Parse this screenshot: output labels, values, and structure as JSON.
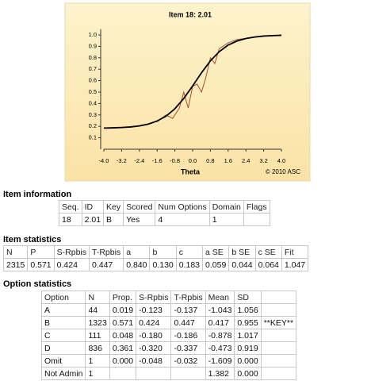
{
  "chart_data": {
    "type": "line",
    "title": "Item 18: 2.01",
    "xlabel": "Theta",
    "annotation": "© 2010 ASC",
    "xlim": [
      -4,
      4
    ],
    "xticks": [
      {
        "value": -4,
        "label": "-4.0"
      },
      {
        "value": -3.2,
        "label": "-3.2"
      },
      {
        "value": -2.4,
        "label": "-2.4"
      },
      {
        "value": -1.6,
        "label": "-1.6"
      },
      {
        "value": -0.8,
        "label": "-0.8"
      },
      {
        "value": 0,
        "label": "0.0"
      },
      {
        "value": 0.8,
        "label": "0.8"
      },
      {
        "value": 1.6,
        "label": "1.6"
      },
      {
        "value": 2.4,
        "label": "2.4"
      },
      {
        "value": 3.2,
        "label": "3.2"
      },
      {
        "value": 4,
        "label": "4.0"
      }
    ],
    "ylim": [
      0,
      1.05
    ],
    "yticks": [
      0.1,
      0.2,
      0.3,
      0.4,
      0.5,
      0.6,
      0.7,
      0.8,
      0.9,
      {
        "value": 1,
        "label": "1.0"
      }
    ],
    "series": [
      {
        "color": "#a0522d",
        "x": [
          -1.6,
          -1.2,
          -0.9,
          -0.6,
          -0.4,
          -0.2,
          0.0,
          0.2,
          0.4,
          0.6,
          0.8,
          1.0,
          1.2,
          1.6,
          2.0,
          2.4
        ],
        "values": [
          0.24,
          0.3,
          0.27,
          0.36,
          0.5,
          0.36,
          0.55,
          0.57,
          0.5,
          0.63,
          0.8,
          0.75,
          0.88,
          0.93,
          0.96,
          0.97
        ]
      },
      {
        "color": "#000000",
        "x": [
          -4.0,
          -3.6,
          -3.2,
          -2.8,
          -2.4,
          -2.0,
          -1.6,
          -1.2,
          -0.8,
          -0.4,
          0.0,
          0.4,
          0.8,
          1.2,
          1.6,
          2.0,
          2.4,
          2.8,
          3.2,
          3.6,
          4.0
        ],
        "values": [
          0.185,
          0.187,
          0.19,
          0.195,
          0.204,
          0.22,
          0.247,
          0.289,
          0.354,
          0.444,
          0.554,
          0.669,
          0.773,
          0.854,
          0.911,
          0.947,
          0.969,
          0.982,
          0.99,
          0.994,
          0.997
        ]
      }
    ]
  },
  "item_information": {
    "title": "Item information",
    "header": [
      "Seq.",
      "ID",
      "Key",
      "Scored",
      "Num Options",
      "Domain",
      "Flags"
    ],
    "rows": [
      [
        "18",
        "2.01",
        "B",
        "Yes",
        "4",
        "1",
        null
      ]
    ]
  },
  "item_statistics": {
    "title": "Item statistics",
    "header": [
      "N",
      "P",
      "S-Rpbis",
      "T-Rpbis",
      "a",
      "b",
      "c",
      "a SE",
      "b SE",
      "c SE",
      "Fit"
    ],
    "rows": [
      [
        "2315",
        "0.571",
        "0.424",
        "0.447",
        "0.840",
        "0.130",
        "0.183",
        "0.059",
        "0.044",
        "0.064",
        "1.047"
      ]
    ]
  },
  "option_statistics": {
    "title": "Option statistics",
    "header": [
      "Option",
      "N",
      "Prop.",
      "S-Rpbis",
      "T-Rpbis",
      "Mean",
      "SD",
      null
    ],
    "rows": [
      [
        "A",
        "44",
        "0.019",
        "-0.123",
        "-0.137",
        "-1.043",
        "1.056",
        null
      ],
      [
        "B",
        "1323",
        "0.571",
        "0.424",
        "0.447",
        "0.417",
        "0.955",
        "**KEY**"
      ],
      [
        "C",
        "111",
        "0.048",
        "-0.180",
        "-0.186",
        "-0.878",
        "1.017",
        null
      ],
      [
        "D",
        "836",
        "0.361",
        "-0.320",
        "-0.337",
        "-0.473",
        "0.919",
        null
      ],
      [
        "Omit",
        "1",
        "0.000",
        "-0.048",
        "-0.032",
        "-1.609",
        "0.000",
        null
      ],
      [
        "Not Admin",
        "1",
        null,
        null,
        null,
        "1.382",
        "0.000",
        null
      ]
    ]
  }
}
